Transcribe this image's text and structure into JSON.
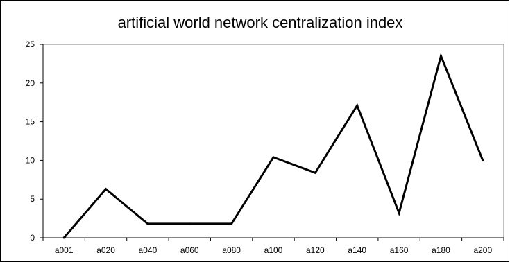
{
  "chart_data": {
    "type": "line",
    "title": "artificial world network centralization index",
    "categories": [
      "a001",
      "a020",
      "a040",
      "a060",
      "a080",
      "a100",
      "a120",
      "a140",
      "a160",
      "a180",
      "a200"
    ],
    "series": [
      {
        "values": [
          0,
          6.3,
          1.8,
          1.8,
          1.8,
          10.4,
          8.4,
          17.1,
          3.2,
          23.5,
          10.0
        ]
      }
    ],
    "ylim": [
      0,
      25
    ],
    "yticks": [
      "0",
      "5",
      "10",
      "15",
      "20",
      "25"
    ],
    "grid": false,
    "legend": "none",
    "colors": {
      "line": "#000000",
      "axis": "#000000",
      "plot_border": "#808080",
      "background": "#ffffff"
    }
  }
}
